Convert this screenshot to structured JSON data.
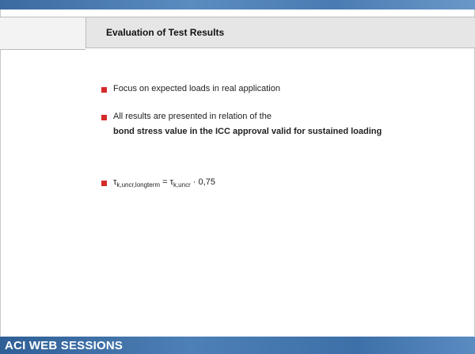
{
  "header": {
    "title": "Evaluation of Test Results"
  },
  "bullets": [
    {
      "text": "Focus on expected loads in real application"
    },
    {
      "text": "All results are presented in relation of the",
      "bold": "bond stress value in the ICC approval valid for sustained loading"
    },
    {
      "formula": {
        "symbol1": "τ",
        "sub1": "k,uncr,longterm",
        "middle": " = τ",
        "sub2": "k,uncr",
        "end": " · 0,75"
      }
    }
  ],
  "footer": {
    "brand": "ACI WEB SESSIONS"
  }
}
